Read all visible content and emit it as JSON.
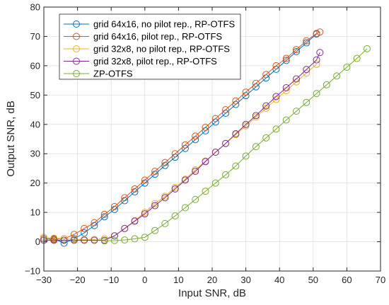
{
  "chart_data": {
    "type": "line",
    "title": "",
    "xlabel": "Input SNR, dB",
    "ylabel": "Output SNR, dB",
    "xlim": [
      -30,
      70
    ],
    "ylim": [
      -10,
      80
    ],
    "xticks": [
      -30,
      -20,
      -10,
      0,
      10,
      20,
      30,
      40,
      50,
      60,
      70
    ],
    "yticks": [
      -10,
      0,
      10,
      20,
      30,
      40,
      50,
      60,
      70,
      80
    ],
    "xtick_labels": [
      "−30",
      "−20",
      "−10",
      "0",
      "10",
      "20",
      "30",
      "40",
      "50",
      "60",
      "70"
    ],
    "ytick_labels": [
      "−10",
      "0",
      "10",
      "20",
      "30",
      "40",
      "50",
      "60",
      "70",
      "80"
    ],
    "grid": true,
    "legend_position": "top-left",
    "series": [
      {
        "name": "grid 64x16, no pilot rep., RP-OTFS",
        "color": "#0072bd",
        "x": [
          -30,
          -27,
          -24,
          -21,
          -18,
          -15,
          -12,
          -9,
          -6,
          -3,
          0,
          3,
          6,
          9,
          12,
          15,
          18,
          21,
          24,
          27,
          30,
          33,
          36,
          39,
          42,
          45,
          48,
          51
        ],
        "y": [
          1,
          1,
          -0.5,
          1,
          3,
          5.5,
          8.5,
          11,
          14,
          17,
          20,
          23,
          26,
          28.8,
          31.8,
          34.8,
          37.8,
          40.8,
          43.8,
          46.8,
          49.8,
          52.8,
          55.8,
          58.8,
          61.8,
          64.8,
          67.8,
          70.8
        ]
      },
      {
        "name": "grid 64x16, pilot rep., RP-OTFS",
        "color": "#d95319",
        "x": [
          -30,
          -27,
          -24,
          -21,
          -18,
          -15,
          -12,
          -9,
          -6,
          -3,
          0,
          3,
          6,
          9,
          12,
          15,
          18,
          21,
          24,
          27,
          30,
          33,
          36,
          39,
          42,
          45,
          48,
          51,
          52
        ],
        "y": [
          1,
          0.8,
          1,
          2.5,
          4.5,
          6.5,
          9.3,
          12,
          15,
          18,
          21,
          24,
          27,
          30,
          33,
          36,
          39,
          42,
          45,
          48,
          51,
          54,
          57,
          60,
          62.5,
          65.5,
          68.5,
          71,
          71.5
        ]
      },
      {
        "name": "grid 32x8, no pilot rep., RP-OTFS",
        "color": "#edb120",
        "x": [
          -30,
          -27,
          -24,
          -21,
          -18,
          -15,
          -12,
          -9,
          -6,
          -3,
          0,
          3,
          6,
          9,
          12,
          15,
          18,
          21,
          24,
          27,
          30,
          33,
          36,
          39,
          42,
          45,
          48,
          51
        ],
        "y": [
          1.5,
          1.2,
          1,
          0.8,
          0.8,
          0.8,
          1,
          2,
          4.5,
          7.2,
          10,
          13,
          15.5,
          18.5,
          21.3,
          24.5,
          27.5,
          30.5,
          33.5,
          36.5,
          39.5,
          42.5,
          45.5,
          48.5,
          51.5,
          54.5,
          57.5,
          60.5
        ]
      },
      {
        "name": "grid 32x8, pilot rep., RP-OTFS",
        "color": "#7e2f8e",
        "x": [
          -30,
          -27,
          -24,
          -21,
          -18,
          -15,
          -12,
          -9,
          -6,
          -3,
          0,
          3,
          6,
          9,
          12,
          15,
          18,
          21,
          24,
          27,
          30,
          33,
          36,
          39,
          42,
          45,
          48,
          51,
          52
        ],
        "y": [
          0.5,
          0.5,
          0.5,
          0.5,
          0.5,
          0.5,
          0.5,
          2,
          4.5,
          7,
          9.5,
          12.3,
          15,
          18,
          21,
          24,
          27.3,
          30.5,
          33.5,
          36.8,
          40,
          43,
          46.3,
          49.5,
          52.5,
          55.5,
          58.7,
          62,
          64.5
        ]
      },
      {
        "name": "ZP-OTFS",
        "color": "#77ac30",
        "x": [
          -12,
          -9,
          -6,
          -3,
          0,
          3,
          6,
          9,
          12,
          15,
          18,
          21,
          24,
          27,
          30,
          33,
          36,
          39,
          42,
          45,
          48,
          51,
          54,
          57,
          60,
          63,
          66
        ],
        "y": [
          0.3,
          0.4,
          0.6,
          1,
          1.5,
          3.8,
          6.2,
          8.8,
          11.6,
          14.4,
          17.2,
          20,
          22.8,
          25.8,
          29.2,
          32.4,
          35.4,
          38.4,
          41.5,
          44.5,
          47.5,
          50.5,
          53.5,
          56.5,
          59.5,
          62.5,
          65.8
        ]
      }
    ]
  }
}
